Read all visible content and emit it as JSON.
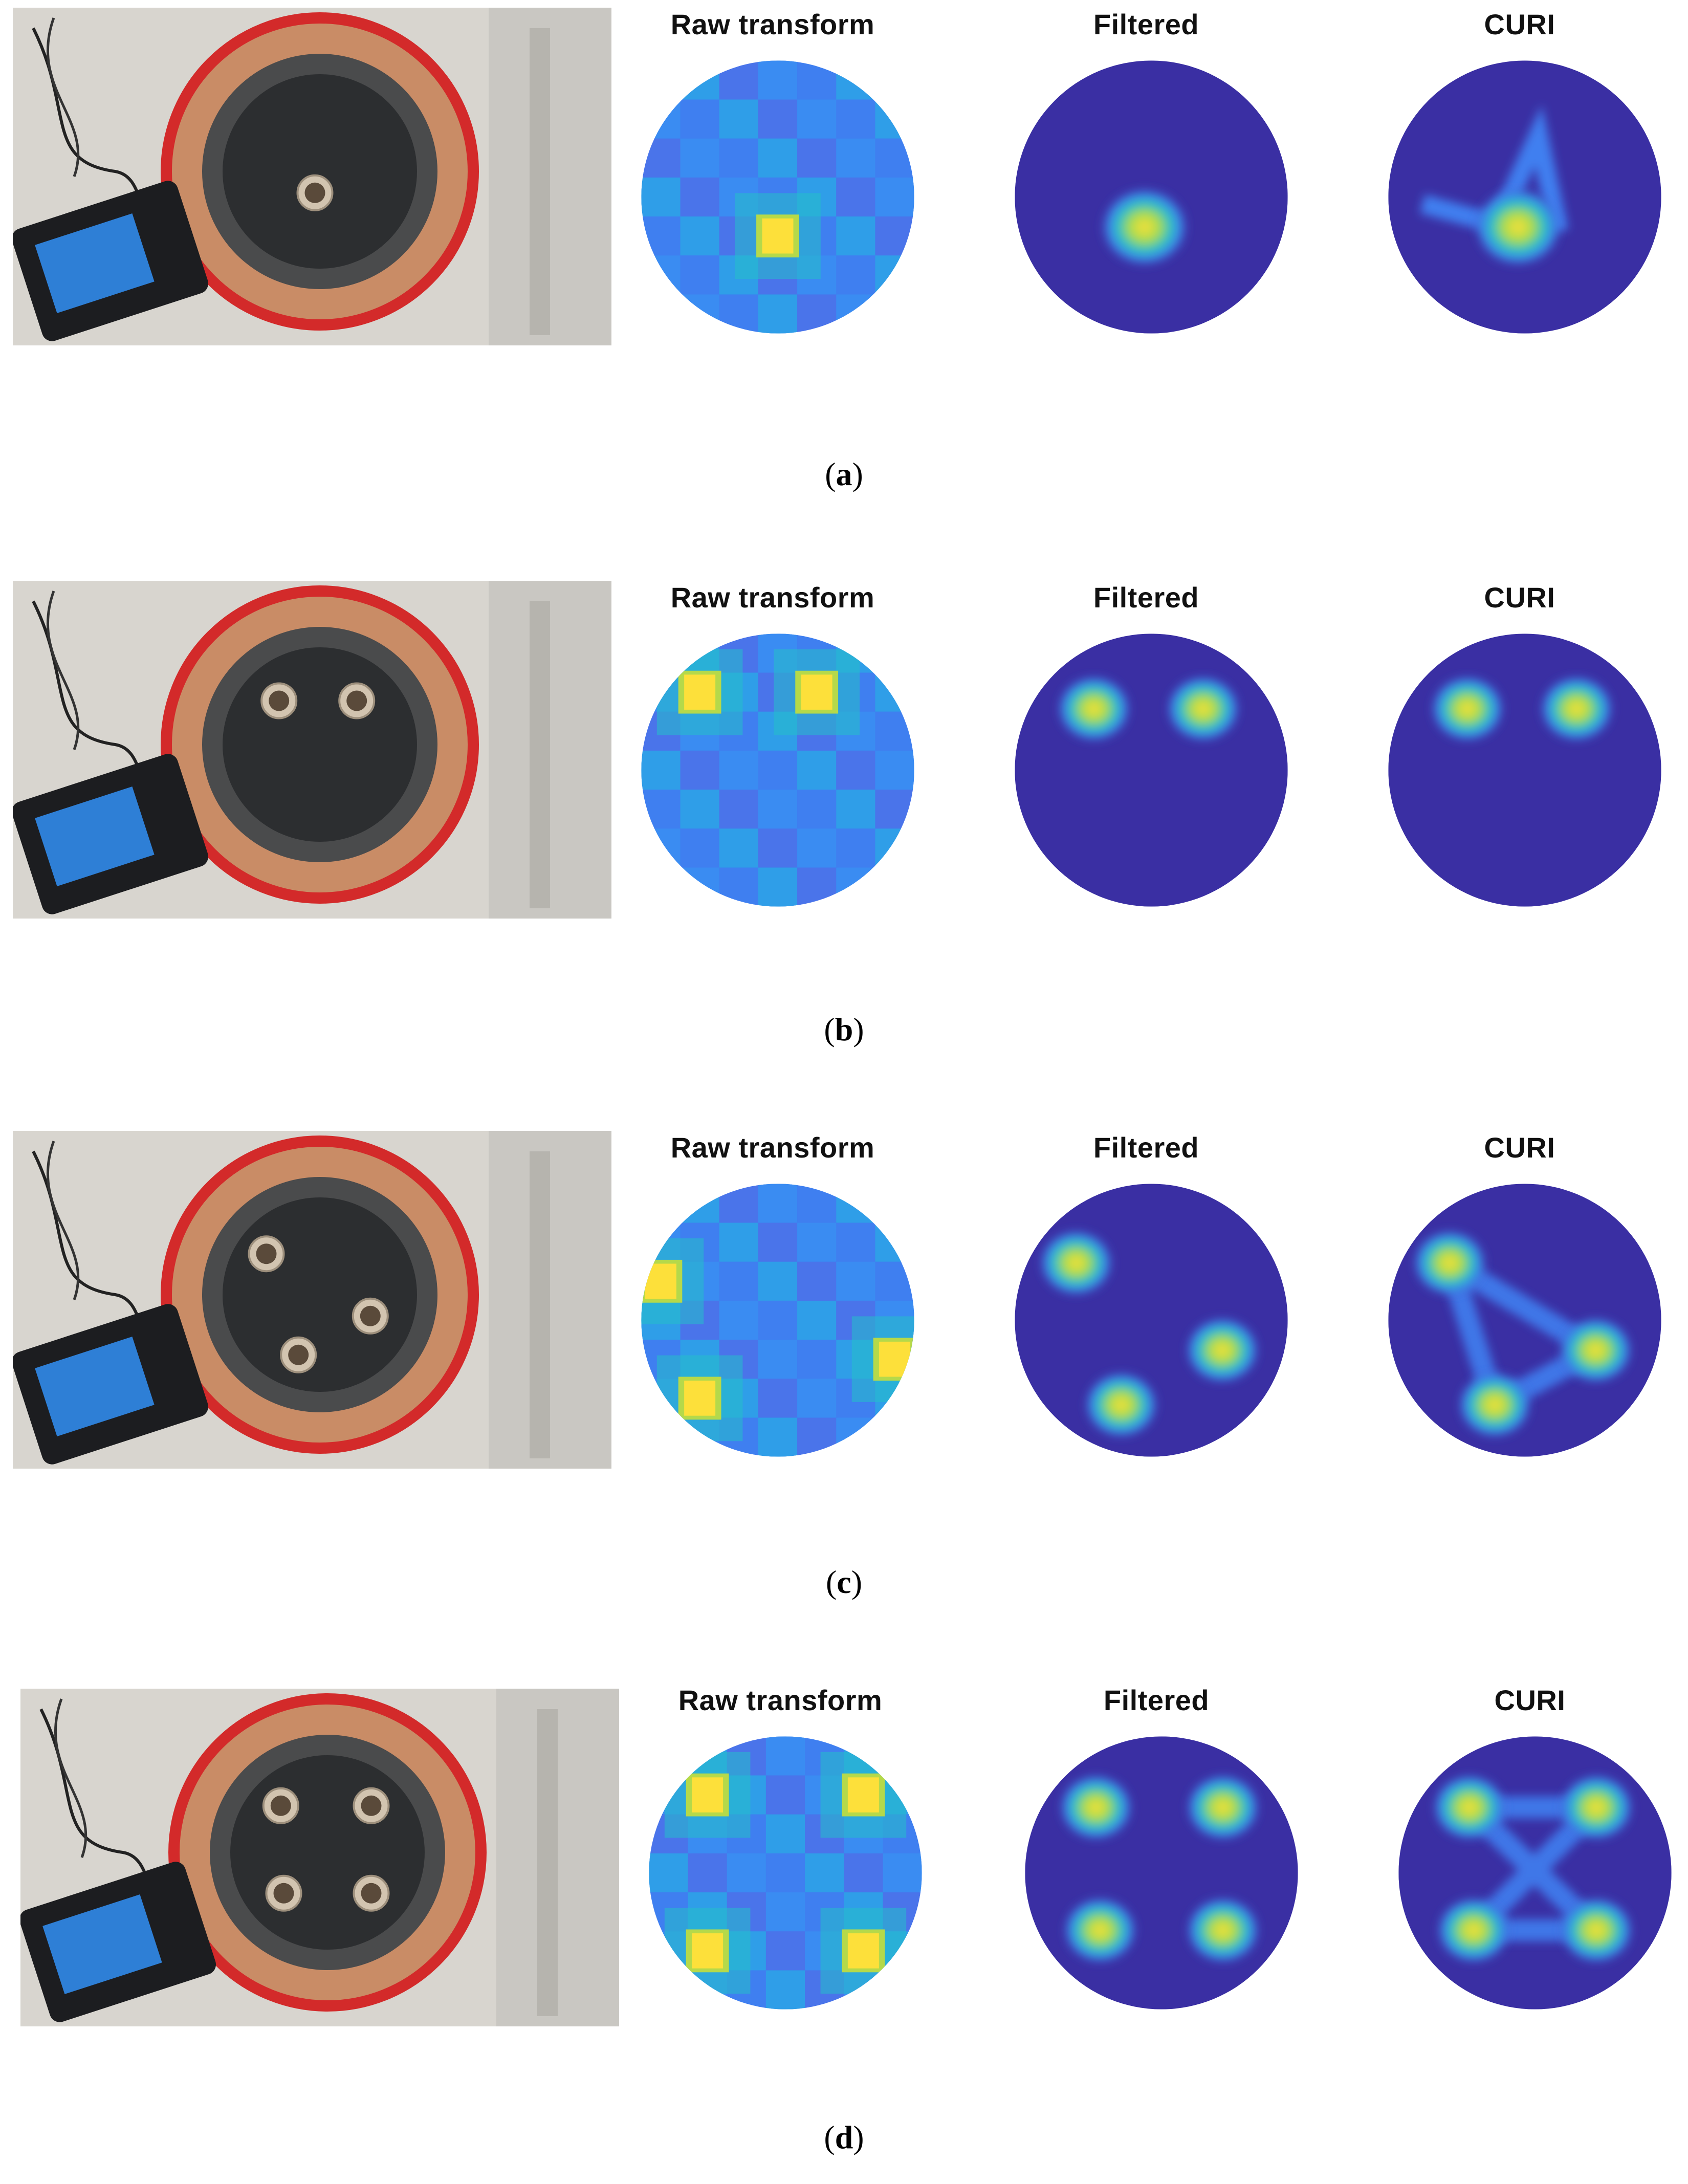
{
  "panel_titles": {
    "raw": "Raw transform",
    "filtered": "Filtered",
    "curi": "CURI"
  },
  "rows": [
    {
      "label_open": "(",
      "label_letter": "a",
      "label_close": ")",
      "targets": 1
    },
    {
      "label_open": "(",
      "label_letter": "b",
      "label_close": ")",
      "targets": 2
    },
    {
      "label_open": "(",
      "label_letter": "c",
      "label_close": ")",
      "targets": 3
    },
    {
      "label_open": "(",
      "label_letter": "d",
      "label_close": ")",
      "targets": 4
    }
  ],
  "colormap": {
    "background": "#3a2fa3",
    "low": "#3f7ff0",
    "mid": "#25c0c8",
    "high": "#fde03a"
  }
}
